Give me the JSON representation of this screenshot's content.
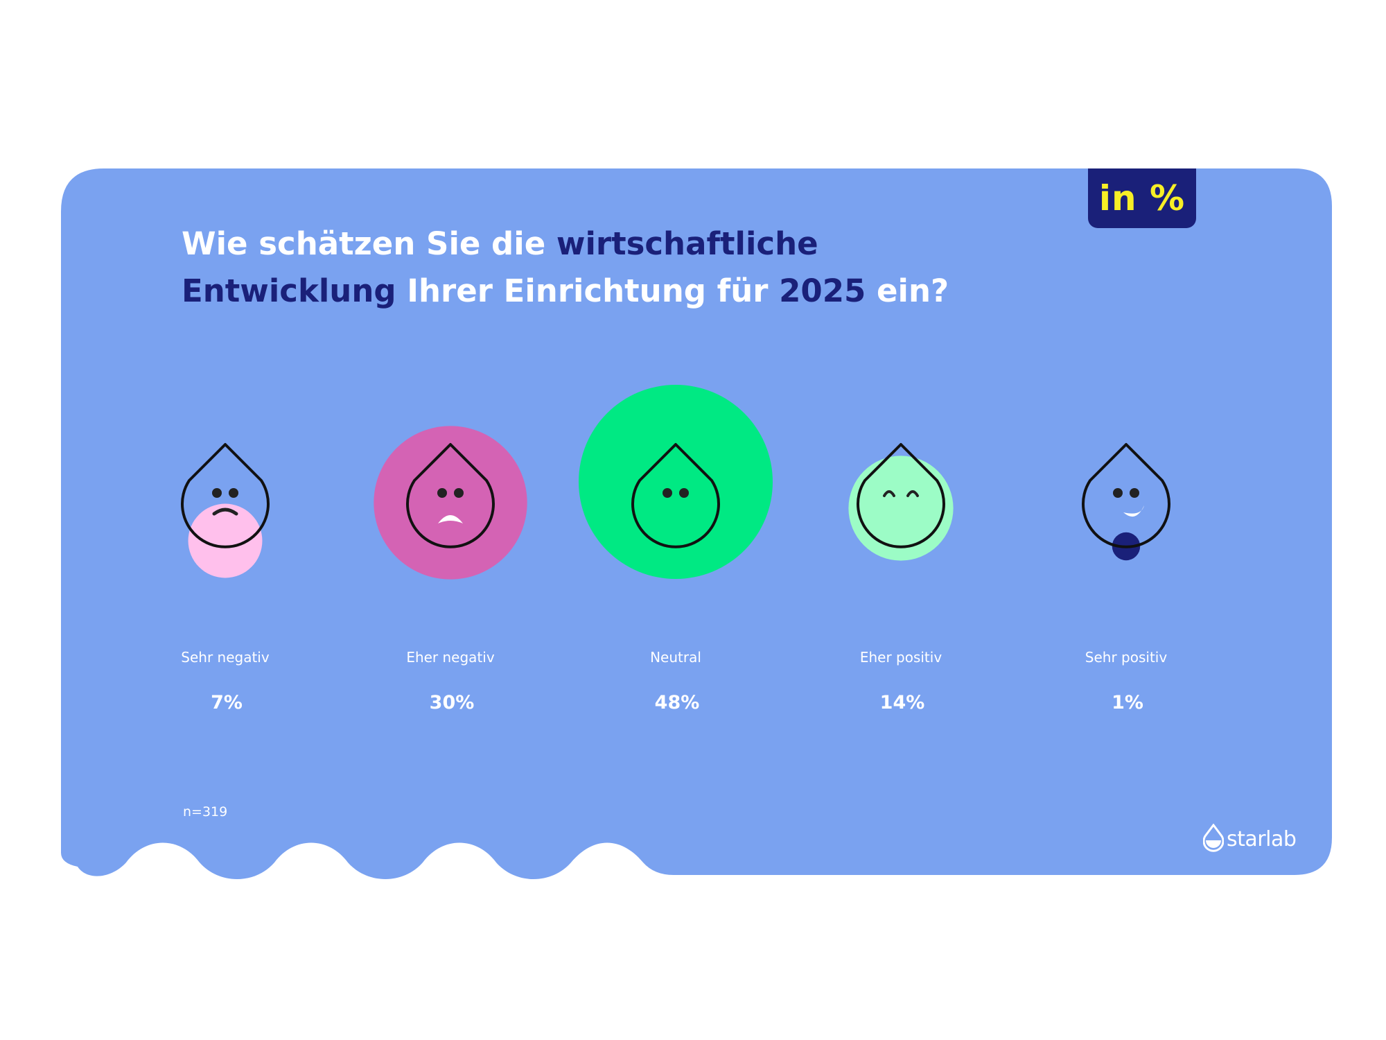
{
  "unit_badge": {
    "text": "in %"
  },
  "title": {
    "segments": [
      {
        "text": "Wie schätzen Sie die ",
        "highlight": false
      },
      {
        "text": "wirtschaftliche",
        "highlight": true
      },
      {
        "text": "\n",
        "highlight": false
      },
      {
        "text": "Entwicklung",
        "highlight": true
      },
      {
        "text": " Ihrer Einrichtung für ",
        "highlight": false
      },
      {
        "text": "2025",
        "highlight": true
      },
      {
        "text": " ein?",
        "highlight": false
      }
    ]
  },
  "chart_data": {
    "type": "bubble",
    "title": "Wie schätzen Sie die wirtschaftliche Entwicklung Ihrer Einrichtung für 2025 ein?",
    "unit": "in %",
    "categories": [
      "Sehr negativ",
      "Eher negativ",
      "Neutral",
      "Eher positiv",
      "Sehr positiv"
    ],
    "values": [
      7,
      30,
      48,
      14,
      1
    ],
    "value_labels": [
      "7%",
      "30%",
      "48%",
      "14%",
      "1%"
    ],
    "colors": [
      "#ffc0ec",
      "#d463b4",
      "#00e983",
      "#9cfcc6",
      "#1a2079"
    ],
    "faces": [
      "worried",
      "sad",
      "neutral",
      "content",
      "happy"
    ]
  },
  "sample_size": "n=319",
  "logo": {
    "text": "starlab",
    "icon": "drop-logo-icon"
  },
  "colors": {
    "background": "#ffffff",
    "card": "#7aa2f0",
    "highlight_text": "#1a2079",
    "badge_bg": "#1a2079",
    "badge_text": "#f7ef26",
    "face_stroke": "#111111"
  }
}
